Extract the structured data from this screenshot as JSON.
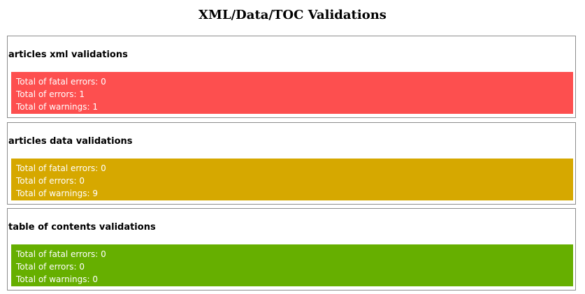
{
  "page": {
    "title": "XML/Data/TOC Validations"
  },
  "sections": [
    {
      "heading": "articles xml validations",
      "status_color": "#fd4f4f",
      "lines": [
        "Total of fatal errors: 0",
        "Total of errors: 1",
        "Total of warnings: 1"
      ]
    },
    {
      "heading": "articles data validations",
      "status_color": "#d6a800",
      "lines": [
        "Total of fatal errors: 0",
        "Total of errors: 0",
        "Total of warnings: 9"
      ]
    },
    {
      "heading": "table of contents validations",
      "status_color": "#66af00",
      "lines": [
        "Total of fatal errors: 0",
        "Total of errors: 0",
        "Total of warnings: 0"
      ]
    }
  ]
}
